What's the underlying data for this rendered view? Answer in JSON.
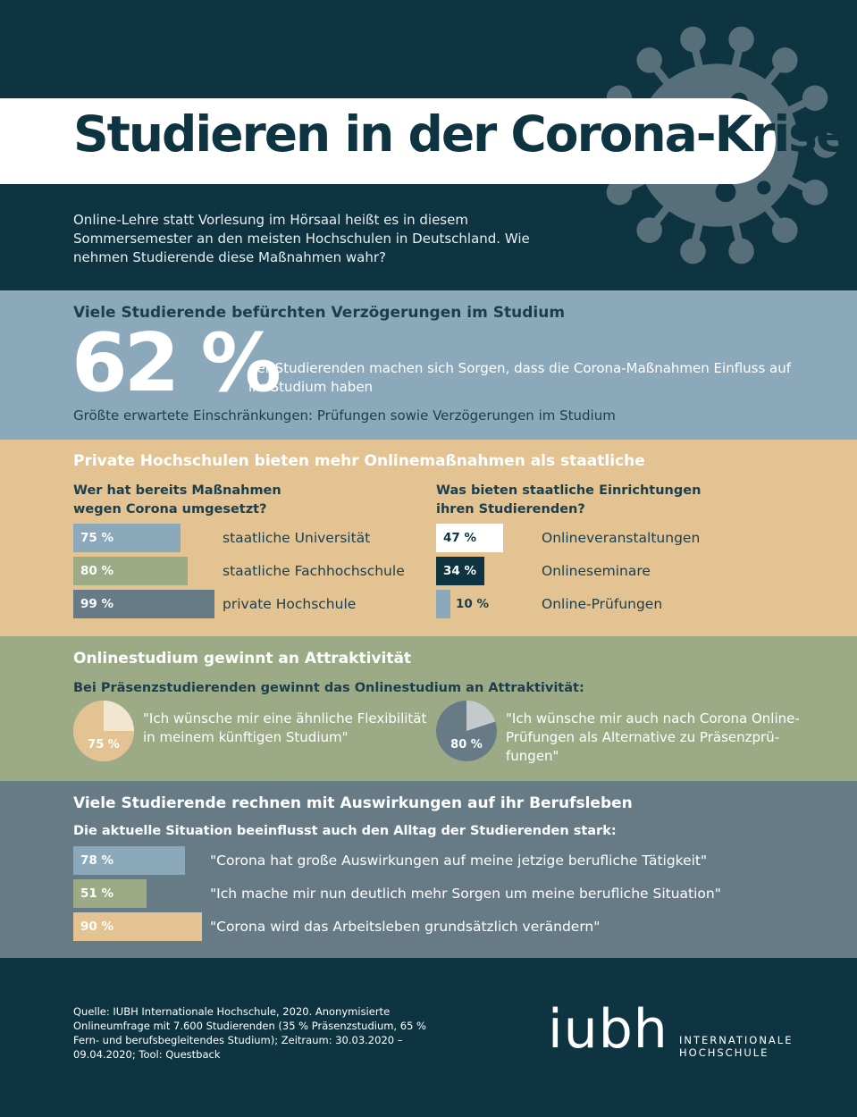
{
  "header": {
    "title": "Studieren in der Corona-Krise",
    "intro": "Online-Lehre statt Vorlesung im Hörsaal heißt es in diesem Sommersemester an den meisten Hochschulen in Deutschland. Wie nehmen Studierende diese Maßnahmen wahr?"
  },
  "section1": {
    "heading": "Viele Studierende befürchten Verzögerungen im Studium",
    "big_value": "62 %",
    "text": "der Studierenden machen sich Sorgen, dass die Corona-Maßnahmen Einfluss auf ihr Studium haben",
    "sub": "Größte erwartete Einschränkungen: Prüfungen sowie Verzögerungen im Studium"
  },
  "section2": {
    "heading": "Private Hochschulen bieten mehr Onlinemaßnahmen als staatliche",
    "left_question": "Wer hat bereits Maßnahmen\nwegen Corona umgesetzt?",
    "right_question": "Was bieten staatliche Einrichtungen\nihren Studierenden?"
  },
  "section3": {
    "heading": "Onlinestudium gewinnt an Attraktivität",
    "sub": "Bei Präsenzstudierenden gewinnt das Onlinestudium an Attraktivität:"
  },
  "section4": {
    "heading": "Viele Studierende rechnen mit Auswirkungen auf ihr Berufsleben",
    "sub": "Die aktuelle Situation beeinflusst auch den Alltag der Studierenden stark:"
  },
  "footer": {
    "source": "Quelle: IUBH Internationale Hochschule, 2020. Anonymisierte Onlineumfrage mit 7.600 Studierenden (35 % Präsenzstudium, 65 % Fern- und berufsbegleitendes Studium); Zeitraum: 30.03.2020 – 09.04.2020; Tool: Questback",
    "logo": "iubh",
    "logo_sub": "INTERNATIONALE\nHOCHSCHULE"
  },
  "colors": {
    "dark": "#0e3442",
    "blue": "#8ca9bc",
    "sand": "#e2c391",
    "green": "#9cab85",
    "slate": "#677b86",
    "cream": "#f3e6d0",
    "light_grey": "#c4c9cc"
  },
  "chart_data": [
    {
      "type": "bar",
      "title": "Wer hat bereits Maßnahmen wegen Corona umgesetzt?",
      "categories": [
        "staatliche Universität",
        "staatliche Fachhochschule",
        "private Hochschule"
      ],
      "values": [
        75,
        80,
        99
      ],
      "labels": [
        "75 %",
        "80 %",
        "99 %"
      ],
      "colors": [
        "#8ca9bc",
        "#9cab85",
        "#677b86"
      ]
    },
    {
      "type": "bar",
      "title": "Was bieten staatliche Einrichtungen ihren Studierenden?",
      "categories": [
        "Onlineveranstaltungen",
        "Onlineseminare",
        "Online-Prüfungen"
      ],
      "values": [
        47,
        34,
        10
      ],
      "labels": [
        "47 %",
        "34 %",
        "10 %"
      ],
      "colors": [
        "#ffffff",
        "#0e3442",
        "#8ca9bc"
      ]
    },
    {
      "type": "pie",
      "value": 75,
      "label": "75 %",
      "quote": "\"Ich wünsche mir eine ähnliche Flexibilität\nin meinem künftigen Studium\""
    },
    {
      "type": "pie",
      "value": 80,
      "label": "80 %",
      "quote": "\"Ich wünsche mir auch nach Corona Online-\nPrüfungen als Alternative zu Präsenzprü-\nfungen\""
    },
    {
      "type": "bar",
      "title": "Die aktuelle Situation beeinflusst auch den Alltag der Studierenden stark:",
      "categories": [
        "\"Corona hat große Auswirkungen auf meine jetzige berufliche Tätigkeit\"",
        "\"Ich mache mir nun deutlich mehr Sorgen um meine berufliche Situation\"",
        "\"Corona wird das Arbeitsleben grundsätzlich verändern\""
      ],
      "values": [
        78,
        51,
        90
      ],
      "labels": [
        "78 %",
        "51 %",
        "90 %"
      ],
      "colors": [
        "#8ca9bc",
        "#9cab85",
        "#e2c391"
      ]
    }
  ]
}
